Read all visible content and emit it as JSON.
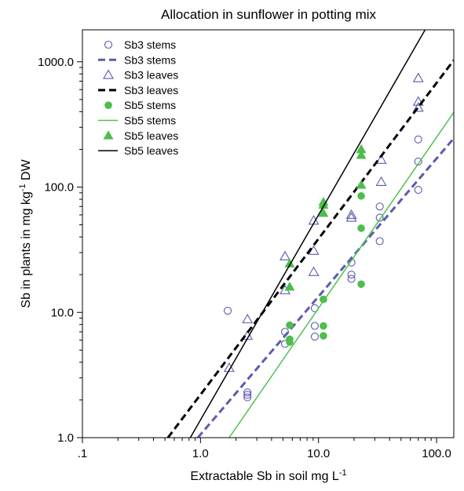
{
  "chart_data": {
    "type": "scatter",
    "title": "Allocation in sunflower in potting mix",
    "xlabel": {
      "main": "Extractable Sb in soil mg L",
      "sup": "-1"
    },
    "ylabel": {
      "main": "Sb in plants in mg kg",
      "sup": "-1",
      "tail": " DW"
    },
    "xscale": "log",
    "yscale": "log",
    "xlim": [
      0.1,
      140
    ],
    "ylim": [
      1.0,
      1800
    ],
    "x_ticks": [
      {
        "value": 0.1,
        "label": ".1"
      },
      {
        "value": 1,
        "label": "1.0"
      },
      {
        "value": 10,
        "label": "10.0"
      },
      {
        "value": 100,
        "label": "100.0"
      }
    ],
    "y_ticks": [
      {
        "value": 1,
        "label": "1.0"
      },
      {
        "value": 10,
        "label": "10.0"
      },
      {
        "value": 100,
        "label": "100.0"
      },
      {
        "value": 1000,
        "label": "1000.0"
      }
    ],
    "legend_position": "top-left",
    "colors": {
      "sb3": "#5b5bb0",
      "sb5_point": "#4dbd4d",
      "sb5_line": "#4ec24e",
      "black": "#000000"
    },
    "series": [
      {
        "name": "Sb3 stems",
        "kind": "points",
        "marker": "circle-open",
        "color": "#5b5bb0",
        "points": [
          [
            1.7,
            10.3
          ],
          [
            2.5,
            2.3
          ],
          [
            2.5,
            2.2
          ],
          [
            2.5,
            2.1
          ],
          [
            5.2,
            7.0
          ],
          [
            5.2,
            5.6
          ],
          [
            9.3,
            10.8
          ],
          [
            9.3,
            7.8
          ],
          [
            9.3,
            6.4
          ],
          [
            19,
            25
          ],
          [
            19,
            20
          ],
          [
            19,
            18.5
          ],
          [
            33,
            70
          ],
          [
            33,
            57
          ],
          [
            33,
            37
          ],
          [
            70,
            240
          ],
          [
            70,
            160
          ],
          [
            70,
            95
          ]
        ]
      },
      {
        "name": "Sb3 stems",
        "kind": "line",
        "style": "dashed",
        "width": 3,
        "color": "#5b5bb0",
        "points": [
          [
            0.95,
            1.0
          ],
          [
            140,
            245
          ]
        ]
      },
      {
        "name": "Sb3 leaves",
        "kind": "points",
        "marker": "triangle-open",
        "color": "#5b5bb0",
        "points": [
          [
            1.75,
            3.6
          ],
          [
            2.5,
            8.8
          ],
          [
            2.5,
            6.5
          ],
          [
            5.2,
            28
          ],
          [
            5.2,
            15
          ],
          [
            9.1,
            54
          ],
          [
            9.1,
            31
          ],
          [
            9.1,
            21
          ],
          [
            19,
            60
          ],
          [
            19,
            57
          ],
          [
            34,
            165
          ],
          [
            34,
            110
          ],
          [
            70,
            740
          ],
          [
            70,
            480
          ],
          [
            70,
            430
          ]
        ]
      },
      {
        "name": "Sb3 leaves",
        "kind": "line",
        "style": "dashed",
        "width": 3,
        "color": "#000000",
        "points": [
          [
            0.53,
            1.0
          ],
          [
            140,
            1030
          ]
        ]
      },
      {
        "name": "Sb5 stems",
        "kind": "points",
        "marker": "circle-filled",
        "color": "#4dbd4d",
        "points": [
          [
            5.7,
            7.9
          ],
          [
            5.7,
            6.1
          ],
          [
            5.7,
            5.8
          ],
          [
            11,
            12.7
          ],
          [
            11,
            7.8
          ],
          [
            11,
            6.5
          ],
          [
            23,
            85
          ],
          [
            23,
            47
          ],
          [
            23,
            16.8
          ]
        ]
      },
      {
        "name": "Sb5 stems",
        "kind": "line",
        "style": "solid",
        "width": 1.5,
        "color": "#4ec24e",
        "points": [
          [
            1.75,
            1.0
          ],
          [
            140,
            395
          ]
        ]
      },
      {
        "name": "Sb5 leaves",
        "kind": "points",
        "marker": "triangle-filled",
        "color": "#4dbd4d",
        "points": [
          [
            5.7,
            24.5
          ],
          [
            5.7,
            16
          ],
          [
            11,
            76
          ],
          [
            11,
            72
          ],
          [
            11,
            62
          ],
          [
            23,
            200
          ],
          [
            23,
            180
          ],
          [
            23,
            104
          ]
        ]
      },
      {
        "name": "Sb5 leaves",
        "kind": "line",
        "style": "solid",
        "width": 1.5,
        "color": "#000000",
        "points": [
          [
            0.82,
            1.0
          ],
          [
            80,
            1800
          ]
        ]
      }
    ]
  }
}
